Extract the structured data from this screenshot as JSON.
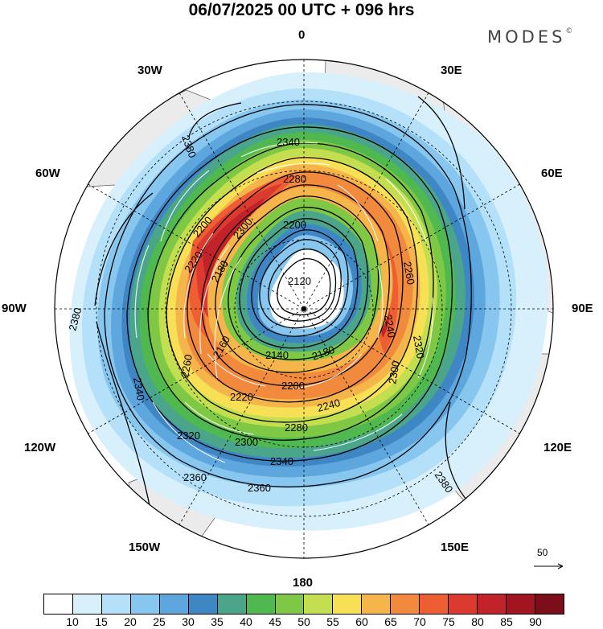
{
  "title": "06/07/2025  00 UTC  + 096 hrs",
  "brand": "MODES",
  "brand_mark": "©",
  "map": {
    "projection": "north-polar-stereographic",
    "ocean_color": "#ffffff",
    "land_color": "#ebebeb",
    "longitude_labels": [
      {
        "text": "0",
        "name": "lon-label-0"
      },
      {
        "text": "30E",
        "name": "lon-label-30e"
      },
      {
        "text": "60E",
        "name": "lon-label-60e"
      },
      {
        "text": "90E",
        "name": "lon-label-90e"
      },
      {
        "text": "120E",
        "name": "lon-label-120e"
      },
      {
        "text": "150E",
        "name": "lon-label-150e"
      },
      {
        "text": "180",
        "name": "lon-label-180"
      },
      {
        "text": "150W",
        "name": "lon-label-150w"
      },
      {
        "text": "120W",
        "name": "lon-label-120w"
      },
      {
        "text": "90W",
        "name": "lon-label-90w"
      },
      {
        "text": "60W",
        "name": "lon-label-60w"
      },
      {
        "text": "30W",
        "name": "lon-label-30w"
      }
    ],
    "contour_labels": [
      "2120",
      "2140",
      "2160",
      "2180",
      "2180",
      "2200",
      "2200",
      "2200",
      "2220",
      "2220",
      "2240",
      "2240",
      "2260",
      "2260",
      "2280",
      "2280",
      "2300",
      "2300",
      "2300",
      "2320",
      "2320",
      "2340",
      "2340",
      "2340",
      "2360",
      "2360",
      "2380",
      "2380",
      "2380"
    ],
    "wind_speed_bands": [
      10,
      15,
      20,
      25,
      30,
      35,
      40,
      45,
      50,
      55,
      60,
      65,
      70,
      75,
      80,
      85,
      90
    ]
  },
  "reference_vector": {
    "label": "50"
  },
  "colorbar": {
    "colors": [
      "#ffffff",
      "#d7f0fc",
      "#b4e1f9",
      "#87c6ee",
      "#5ea6de",
      "#3f87c4",
      "#4aa58a",
      "#4fb84e",
      "#7ec845",
      "#c3de4e",
      "#f7e055",
      "#f6b54a",
      "#f28a3d",
      "#ee5e33",
      "#dc3a2f",
      "#c22229",
      "#a11521",
      "#7c0e1a"
    ],
    "ticks": [
      "10",
      "15",
      "20",
      "25",
      "30",
      "35",
      "40",
      "45",
      "50",
      "55",
      "60",
      "65",
      "70",
      "75",
      "80",
      "85",
      "90"
    ]
  }
}
